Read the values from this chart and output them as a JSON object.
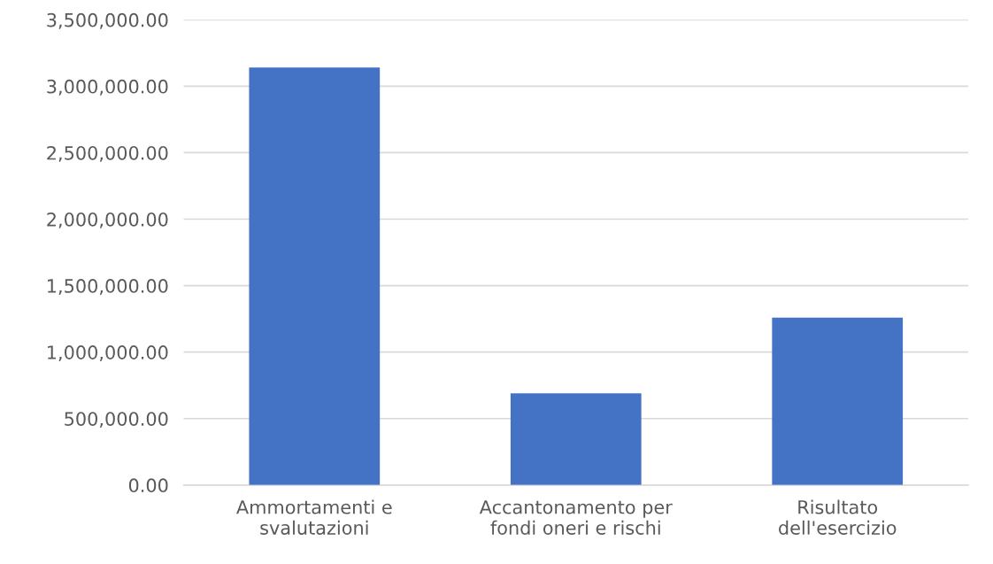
{
  "chart_data": {
    "type": "bar",
    "categories": [
      "Ammortamenti e svalutazioni",
      "Accantonamento per fondi oneri e rischi",
      "Risultato dell'esercizio"
    ],
    "values": [
      3140000,
      690000,
      1260000
    ],
    "color": "#4472c4",
    "ylim": [
      0,
      3500000
    ],
    "yticks": [
      {
        "value": 0,
        "label": "0.00"
      },
      {
        "value": 500000,
        "label": "500,000.00"
      },
      {
        "value": 1000000,
        "label": "1,000,000.00"
      },
      {
        "value": 1500000,
        "label": "1,500,000.00"
      },
      {
        "value": 2000000,
        "label": "2,000,000.00"
      },
      {
        "value": 2500000,
        "label": "2,500,000.00"
      },
      {
        "value": 3000000,
        "label": "3,000,000.00"
      },
      {
        "value": 3500000,
        "label": "3,500,000.00"
      }
    ],
    "grid": "y"
  }
}
